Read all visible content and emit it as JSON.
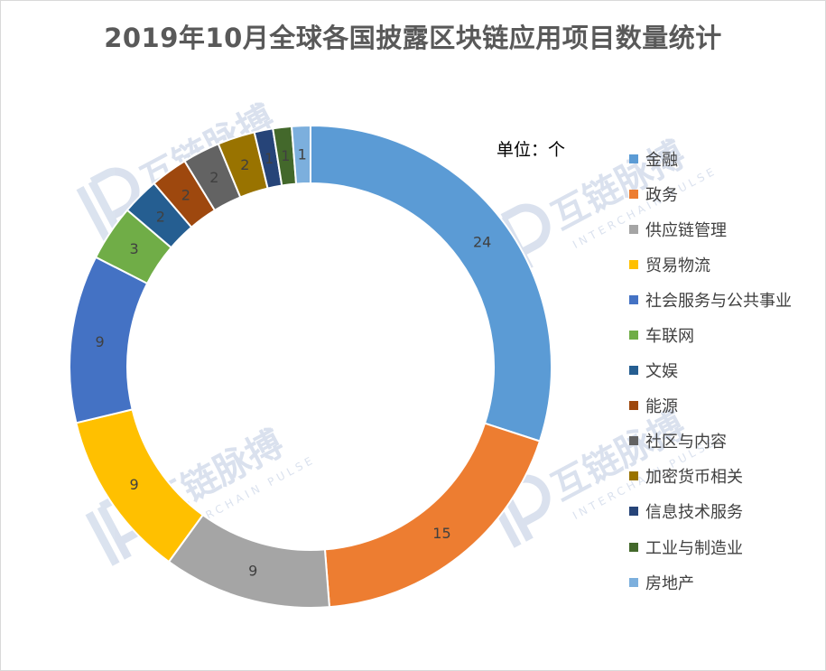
{
  "chart_data": {
    "type": "pie",
    "title": "2019年10月全球各国披露区块链应用项目数量统计",
    "unit_label": "单位：个",
    "legend_position": "right",
    "categories": [
      "金融",
      "政务",
      "供应链管理",
      "贸易物流",
      "社会服务与公共事业",
      "车联网",
      "文娱",
      "能源",
      "社区与内容",
      "加密货币相关",
      "信息技术服务",
      "工业与制造业",
      "房地产"
    ],
    "values": [
      24,
      15,
      9,
      9,
      9,
      3,
      2,
      2,
      2,
      2,
      1,
      1,
      1
    ],
    "colors": [
      "#5B9BD5",
      "#ED7D31",
      "#A5A5A5",
      "#FFC000",
      "#4472C4",
      "#70AD47",
      "#255E91",
      "#9E480E",
      "#636363",
      "#997300",
      "#264478",
      "#43682B",
      "#7CAFDD"
    ],
    "watermark": {
      "logo_text": "互链脉搏",
      "sub_text": "INTERCHAIN PULSE"
    }
  }
}
